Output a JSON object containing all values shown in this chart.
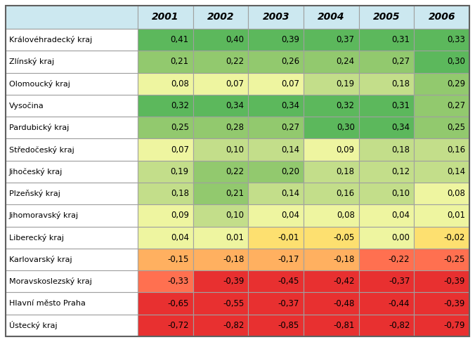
{
  "columns": [
    "2001",
    "2002",
    "2003",
    "2004",
    "2005",
    "2006"
  ],
  "rows": [
    "Královéhradecký kraj",
    "Zlínský kraj",
    "Olomoucký kraj",
    "Vysočina",
    "Pardubický kraj",
    "Středočeský kraj",
    "Jihočeský kraj",
    "Plzeňský kraj",
    "Jihomoravský kraj",
    "Liberecký kraj",
    "Karlovarský kraj",
    "Moravskoslezský kraj",
    "Hlavní město Praha",
    "Ústecký kraj"
  ],
  "values": [
    [
      0.41,
      0.4,
      0.39,
      0.37,
      0.31,
      0.33
    ],
    [
      0.21,
      0.22,
      0.26,
      0.24,
      0.27,
      0.3
    ],
    [
      0.08,
      0.07,
      0.07,
      0.19,
      0.18,
      0.29
    ],
    [
      0.32,
      0.34,
      0.34,
      0.32,
      0.31,
      0.27
    ],
    [
      0.25,
      0.28,
      0.27,
      0.3,
      0.34,
      0.25
    ],
    [
      0.07,
      0.1,
      0.14,
      0.09,
      0.18,
      0.16
    ],
    [
      0.19,
      0.22,
      0.2,
      0.18,
      0.12,
      0.14
    ],
    [
      0.18,
      0.21,
      0.14,
      0.16,
      0.1,
      0.08
    ],
    [
      0.09,
      0.1,
      0.04,
      0.08,
      0.04,
      0.01
    ],
    [
      0.04,
      0.01,
      -0.01,
      -0.05,
      0.0,
      -0.02
    ],
    [
      -0.15,
      -0.18,
      -0.17,
      -0.18,
      -0.22,
      -0.25
    ],
    [
      -0.33,
      -0.39,
      -0.45,
      -0.42,
      -0.37,
      -0.39
    ],
    [
      -0.65,
      -0.55,
      -0.37,
      -0.48,
      -0.44,
      -0.39
    ],
    [
      -0.72,
      -0.82,
      -0.85,
      -0.81,
      -0.82,
      -0.79
    ]
  ],
  "header_bg": "#cce8f0",
  "border_color": "#a0a0a0",
  "fig_bg": "#ffffff",
  "color_thresholds": [
    0.3,
    0.2,
    0.1,
    0.0,
    -0.1,
    -0.2,
    -0.35
  ],
  "colors": [
    "#5cb85c",
    "#92c96e",
    "#c3de8a",
    "#eef5a0",
    "#fde070",
    "#ffb060",
    "#ff7050",
    "#e83030"
  ]
}
